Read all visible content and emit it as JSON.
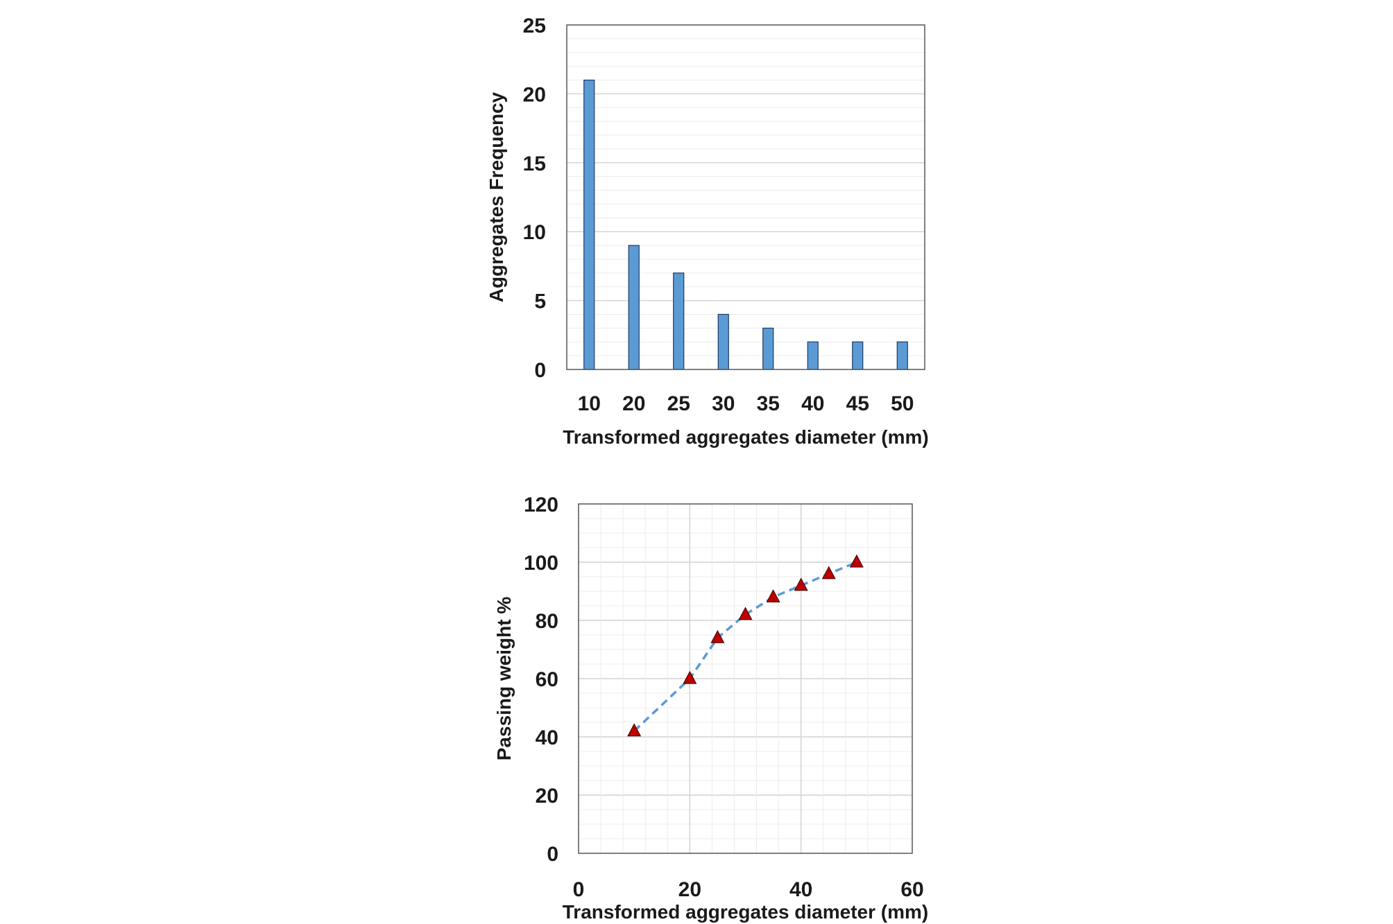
{
  "chart_data": [
    {
      "type": "bar",
      "categories": [
        "10",
        "20",
        "25",
        "30",
        "35",
        "40",
        "45",
        "50"
      ],
      "values": [
        21,
        9,
        7,
        4,
        3,
        2,
        2,
        2
      ],
      "xlabel": "Transformed aggregates diameter (mm)",
      "ylabel": "Aggregates Frequency",
      "ylim": [
        0,
        25
      ],
      "yticks": [
        0,
        5,
        10,
        15,
        20,
        25
      ],
      "grid": "horizontal",
      "bar_color": "#5b9bd5",
      "bar_edge_color": "#1f3864"
    },
    {
      "type": "line",
      "x": [
        10,
        20,
        25,
        30,
        35,
        40,
        45,
        50
      ],
      "y": [
        42,
        60,
        74,
        82,
        88,
        92,
        96,
        100
      ],
      "xlabel": "Transformed aggregates diameter (mm)",
      "ylabel": "Passing weight %",
      "xlim": [
        0,
        60
      ],
      "ylim": [
        0,
        120
      ],
      "xticks": [
        0,
        20,
        40,
        60
      ],
      "yticks": [
        0,
        20,
        40,
        60,
        80,
        100,
        120
      ],
      "grid": "major and minor",
      "line_style": "dashed",
      "line_color": "#5b9bd5",
      "marker": "triangle",
      "marker_color": "#c00000"
    }
  ]
}
